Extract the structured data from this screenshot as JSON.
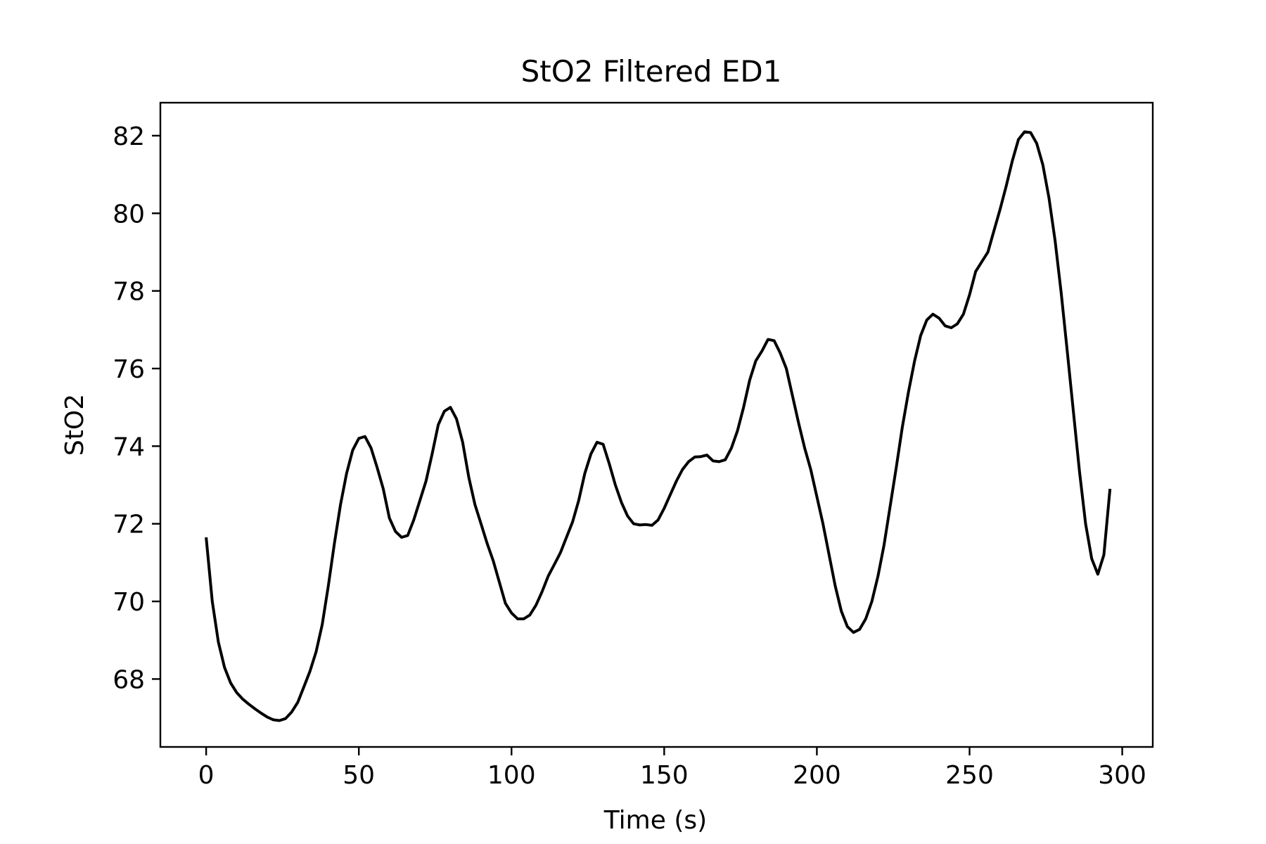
{
  "chart_data": {
    "type": "line",
    "title": "StO2 Filtered ED1",
    "xlabel": "Time (s)",
    "ylabel": "StO2",
    "xlim": [
      -15,
      310
    ],
    "ylim": [
      66.25,
      82.85
    ],
    "xticks": [
      0,
      50,
      100,
      150,
      200,
      250,
      300
    ],
    "yticks": [
      68,
      70,
      72,
      74,
      76,
      78,
      80,
      82
    ],
    "grid": false,
    "legend": "none",
    "line_color": "#000000",
    "series": [
      {
        "x": [
          0,
          2,
          4,
          6,
          8,
          10,
          12,
          14,
          16,
          18,
          20,
          22,
          24,
          26,
          28,
          30,
          32,
          34,
          36,
          38,
          40,
          42,
          44,
          46,
          48,
          50,
          52,
          54,
          56,
          58,
          60,
          62,
          64,
          66,
          68,
          70,
          72,
          74,
          76,
          78,
          80,
          82,
          84,
          86,
          88,
          90,
          92,
          94,
          96,
          98,
          100,
          102,
          104,
          106,
          108,
          110,
          112,
          114,
          116,
          118,
          120,
          122,
          124,
          126,
          128,
          130,
          132,
          134,
          136,
          138,
          140,
          142,
          144,
          146,
          148,
          150,
          152,
          154,
          156,
          158,
          160,
          162,
          164,
          166,
          168,
          170,
          172,
          174,
          176,
          178,
          180,
          182,
          184,
          186,
          188,
          190,
          192,
          194,
          196,
          198,
          200,
          202,
          204,
          206,
          208,
          210,
          212,
          214,
          216,
          218,
          220,
          222,
          224,
          226,
          228,
          230,
          232,
          234,
          236,
          238,
          240,
          242,
          244,
          246,
          248,
          250,
          252,
          254,
          256,
          258,
          260,
          262,
          264,
          266,
          268,
          270,
          272,
          274,
          276,
          278,
          280,
          282,
          284,
          286,
          288,
          290,
          292,
          294,
          296
        ],
        "y": [
          71.65,
          70.0,
          68.95,
          68.3,
          67.9,
          67.65,
          67.48,
          67.35,
          67.23,
          67.12,
          67.02,
          66.95,
          66.93,
          66.98,
          67.15,
          67.4,
          67.8,
          68.2,
          68.7,
          69.4,
          70.4,
          71.5,
          72.5,
          73.3,
          73.9,
          74.2,
          74.25,
          73.95,
          73.45,
          72.9,
          72.15,
          71.8,
          71.65,
          71.7,
          72.1,
          72.6,
          73.1,
          73.8,
          74.55,
          74.9,
          75.0,
          74.7,
          74.1,
          73.2,
          72.5,
          72.0,
          71.5,
          71.05,
          70.5,
          69.95,
          69.7,
          69.55,
          69.55,
          69.65,
          69.9,
          70.25,
          70.65,
          70.95,
          71.25,
          71.65,
          72.05,
          72.6,
          73.3,
          73.8,
          74.1,
          74.05,
          73.55,
          73.0,
          72.55,
          72.2,
          72.0,
          71.97,
          71.98,
          71.96,
          72.1,
          72.4,
          72.75,
          73.1,
          73.4,
          73.6,
          73.72,
          73.73,
          73.77,
          73.62,
          73.6,
          73.65,
          73.95,
          74.4,
          75.0,
          75.7,
          76.2,
          76.45,
          76.75,
          76.72,
          76.4,
          76.0,
          75.3,
          74.6,
          73.95,
          73.4,
          72.7,
          72.0,
          71.2,
          70.4,
          69.75,
          69.35,
          69.2,
          69.28,
          69.55,
          70.0,
          70.65,
          71.45,
          72.45,
          73.45,
          74.5,
          75.4,
          76.2,
          76.85,
          77.25,
          77.4,
          77.3,
          77.1,
          77.05,
          77.15,
          77.4,
          77.9,
          78.5,
          78.75,
          79.0,
          79.55,
          80.1,
          80.7,
          81.35,
          81.9,
          82.1,
          82.08,
          81.8,
          81.25,
          80.4,
          79.3,
          77.95,
          76.45,
          74.9,
          73.35,
          72.0,
          71.1,
          70.7,
          71.2,
          72.9
        ]
      }
    ]
  }
}
